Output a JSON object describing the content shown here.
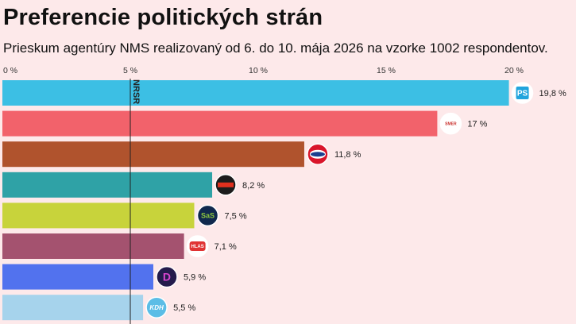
{
  "chart_data": {
    "type": "bar",
    "orientation": "horizontal",
    "title": "Preferencie politických strán",
    "subtitle": "Prieskum agentúry NMS realizovaný od 6. do 10. mája 2026 na vzorke 1002 respondentov.",
    "x_ticks": [
      "0 %",
      "5 %",
      "10 %",
      "15 %",
      "20 %"
    ],
    "x_tick_values": [
      0,
      5,
      10,
      15,
      20
    ],
    "xlim": [
      0,
      22.5
    ],
    "threshold": {
      "value": 5,
      "label": "NRSR"
    },
    "bars": [
      {
        "party": "PS",
        "value": 19.8,
        "label": "19,8 %",
        "color": "#3cbfe4",
        "logo": "ps-logo",
        "logo_bg": "#ffffff",
        "logo_fg": "#21a4dd",
        "logo_text": "PS"
      },
      {
        "party": "SMER",
        "value": 17,
        "label": "17 %",
        "color": "#f2626b",
        "logo": "smer-logo",
        "logo_bg": "#ffffff",
        "logo_fg": "#c9302c",
        "logo_text": "SMER"
      },
      {
        "party": "Republika",
        "value": 11.8,
        "label": "11,8 %",
        "color": "#b0532d",
        "logo": "republika-logo",
        "logo_bg": "#d9152b",
        "logo_fg": "#ffffff",
        "logo_text": ""
      },
      {
        "party": "Slovensko",
        "value": 8.2,
        "label": "8,2 %",
        "color": "#2fa2a6",
        "logo": "slovensko-logo",
        "logo_bg": "#1c1c1c",
        "logo_fg": "#e0301e",
        "logo_text": ""
      },
      {
        "party": "SaS",
        "value": 7.5,
        "label": "7,5 %",
        "color": "#c8d33b",
        "logo": "sas-logo",
        "logo_bg": "#10284d",
        "logo_fg": "#8cc63f",
        "logo_text": "SaS"
      },
      {
        "party": "HLAS",
        "value": 7.1,
        "label": "7,1 %",
        "color": "#a4526f",
        "logo": "hlas-logo",
        "logo_bg": "#ffffff",
        "logo_fg": "#e03333",
        "logo_text": "HLAS"
      },
      {
        "party": "Demokrati",
        "value": 5.9,
        "label": "5,9 %",
        "color": "#5272ee",
        "logo": "demokrati-logo",
        "logo_bg": "#241b4c",
        "logo_fg": "#d946d0",
        "logo_text": "D"
      },
      {
        "party": "KDH",
        "value": 5.5,
        "label": "5,5 %",
        "color": "#a6d3ec",
        "logo": "kdh-logo",
        "logo_bg": "#5bbde6",
        "logo_fg": "#ffffff",
        "logo_text": "KDH"
      }
    ]
  }
}
